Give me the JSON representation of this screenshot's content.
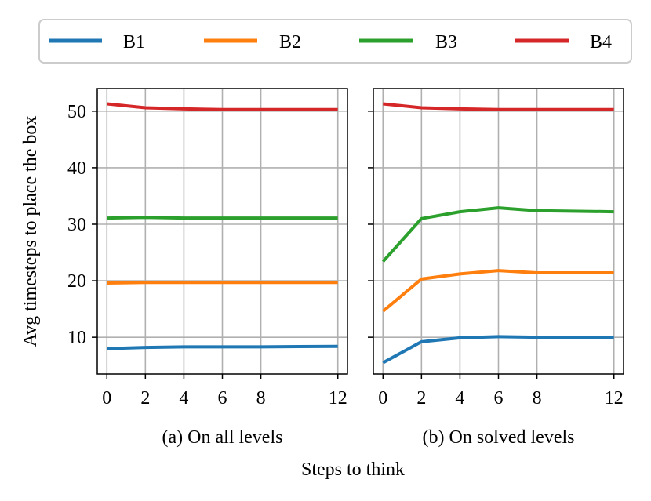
{
  "chart_data": {
    "type": "line",
    "legend": {
      "placement": "top",
      "entries": [
        {
          "name": "B1",
          "color": "#1f77b4"
        },
        {
          "name": "B2",
          "color": "#ff7f0e"
        },
        {
          "name": "B3",
          "color": "#2ca02c"
        },
        {
          "name": "B4",
          "color": "#d62728"
        }
      ]
    },
    "ylabel": "Avg timesteps to place the box",
    "xlabel": "Steps to think",
    "grid": true,
    "panels": [
      {
        "subtitle": "(a) On all levels",
        "x": [
          0,
          2,
          4,
          6,
          8,
          12
        ],
        "xticks": [
          "0",
          "2",
          "4",
          "6",
          "8",
          "12"
        ],
        "xlim": [
          -0.5,
          12.5
        ],
        "ylim": [
          3.5,
          54
        ],
        "yticks": [
          "10",
          "20",
          "30",
          "40",
          "50"
        ],
        "series": [
          {
            "name": "B1",
            "color": "#1f77b4",
            "values": [
              8.0,
              8.2,
              8.3,
              8.3,
              8.3,
              8.4
            ]
          },
          {
            "name": "B2",
            "color": "#ff7f0e",
            "values": [
              19.6,
              19.7,
              19.7,
              19.7,
              19.7,
              19.7
            ]
          },
          {
            "name": "B3",
            "color": "#2ca02c",
            "values": [
              31.1,
              31.2,
              31.1,
              31.1,
              31.1,
              31.1
            ]
          },
          {
            "name": "B4",
            "color": "#d62728",
            "values": [
              51.3,
              50.6,
              50.4,
              50.3,
              50.3,
              50.3
            ]
          }
        ]
      },
      {
        "subtitle": "(b) On solved levels",
        "x": [
          0,
          2,
          4,
          6,
          8,
          12
        ],
        "xticks": [
          "0",
          "2",
          "4",
          "6",
          "8",
          "12"
        ],
        "xlim": [
          -0.5,
          12.5
        ],
        "ylim": [
          3.5,
          54
        ],
        "yticks": [],
        "series": [
          {
            "name": "B1",
            "color": "#1f77b4",
            "values": [
              5.5,
              9.2,
              9.9,
              10.1,
              10.0,
              10.0
            ]
          },
          {
            "name": "B2",
            "color": "#ff7f0e",
            "values": [
              14.6,
              20.3,
              21.2,
              21.8,
              21.4,
              21.4
            ]
          },
          {
            "name": "B3",
            "color": "#2ca02c",
            "values": [
              23.4,
              31.0,
              32.2,
              32.9,
              32.4,
              32.2
            ]
          },
          {
            "name": "B4",
            "color": "#d62728",
            "values": [
              51.3,
              50.6,
              50.4,
              50.3,
              50.3,
              50.3
            ]
          }
        ]
      }
    ]
  }
}
